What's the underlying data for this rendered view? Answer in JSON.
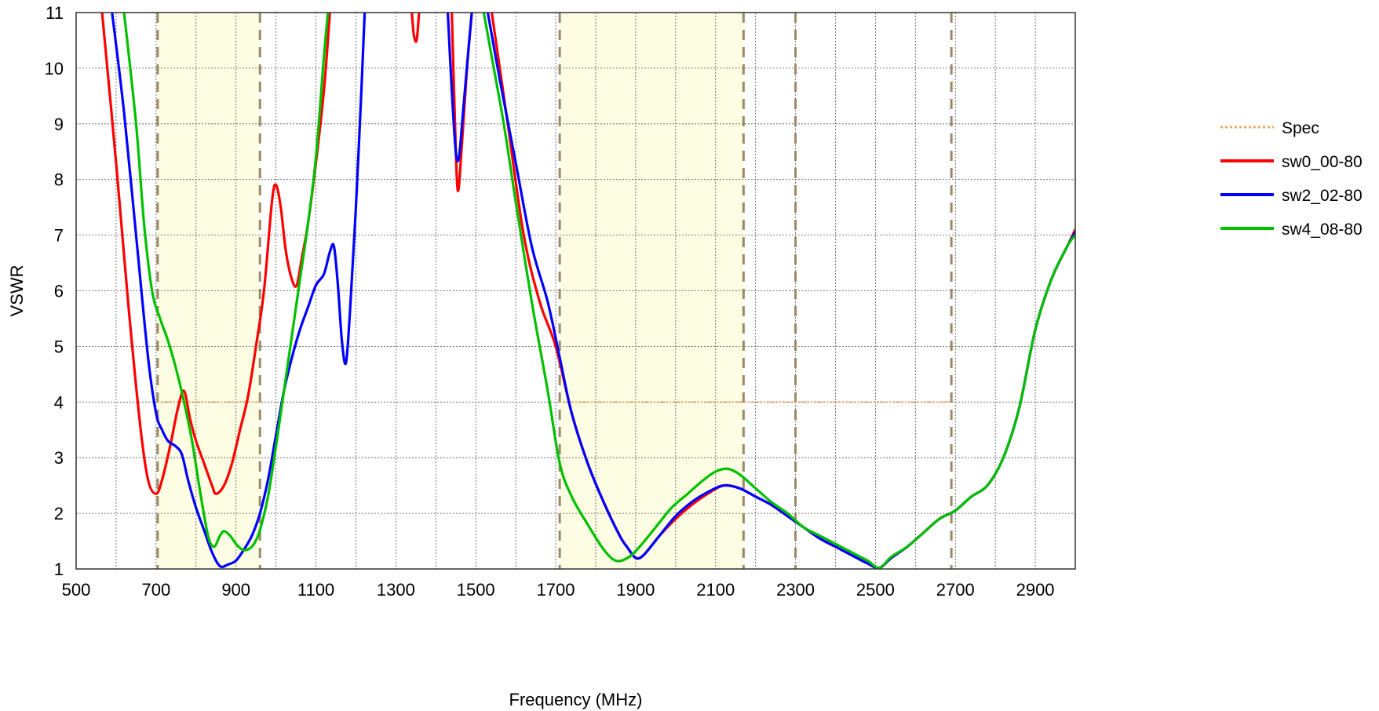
{
  "chart_data": {
    "type": "line",
    "title": "",
    "xlabel": "Frequency (MHz)",
    "ylabel": "VSWR",
    "xlim": [
      500,
      3000
    ],
    "ylim": [
      1,
      11
    ],
    "grid": true,
    "legend_position": "right",
    "x_ticks": [
      "500",
      "700",
      "900",
      "1100",
      "1300",
      "1500",
      "1700",
      "1900",
      "2100",
      "2300",
      "2500",
      "2700",
      "2900"
    ],
    "y_ticks": [
      "1",
      "2",
      "3",
      "4",
      "5",
      "6",
      "7",
      "8",
      "9",
      "10",
      "11"
    ],
    "shaded_bands": [
      [
        704,
        960
      ],
      [
        1710,
        2170
      ]
    ],
    "band_markers": [
      704,
      960,
      1710,
      2170,
      2300,
      2690
    ],
    "spec": {
      "name": "Spec",
      "color": "#f4a460",
      "value": 4,
      "ranges": [
        [
          704,
          960
        ],
        [
          1710,
          2690
        ]
      ]
    },
    "series": [
      {
        "name": "sw0_00-80",
        "color": "#ff0000",
        "points": [
          [
            565,
            11
          ],
          [
            600,
            8.3
          ],
          [
            630,
            5.8
          ],
          [
            660,
            3.6
          ],
          [
            680,
            2.6
          ],
          [
            700,
            2.35
          ],
          [
            715,
            2.6
          ],
          [
            735,
            3.2
          ],
          [
            755,
            3.9
          ],
          [
            770,
            4.2
          ],
          [
            785,
            3.7
          ],
          [
            800,
            3.3
          ],
          [
            820,
            2.9
          ],
          [
            840,
            2.5
          ],
          [
            850,
            2.35
          ],
          [
            870,
            2.5
          ],
          [
            890,
            2.9
          ],
          [
            910,
            3.5
          ],
          [
            930,
            4.1
          ],
          [
            950,
            5.0
          ],
          [
            970,
            6.0
          ],
          [
            990,
            7.6
          ],
          [
            1000,
            7.9
          ],
          [
            1012,
            7.5
          ],
          [
            1025,
            6.7
          ],
          [
            1040,
            6.2
          ],
          [
            1052,
            6.1
          ],
          [
            1065,
            6.6
          ],
          [
            1080,
            7.2
          ],
          [
            1100,
            8.3
          ],
          [
            1120,
            9.6
          ],
          [
            1135,
            11
          ]
        ],
        "segments": [
          [
            [
              1340,
              11
            ],
            [
              1345,
              10.6
            ],
            [
              1352,
              10.5
            ],
            [
              1358,
              11
            ]
          ],
          [
            [
              1440,
              11
            ],
            [
              1448,
              9.0
            ],
            [
              1455,
              7.8
            ],
            [
              1465,
              8.6
            ],
            [
              1478,
              10.0
            ],
            [
              1490,
              11
            ]
          ],
          [
            [
              1540,
              11
            ],
            [
              1580,
              9.0
            ],
            [
              1620,
              7.0
            ],
            [
              1660,
              5.8
            ],
            [
              1700,
              5.0
            ],
            [
              1740,
              3.8
            ],
            [
              1780,
              2.9
            ],
            [
              1820,
              2.2
            ],
            [
              1860,
              1.6
            ],
            [
              1880,
              1.38
            ],
            [
              1900,
              1.2
            ],
            [
              1920,
              1.25
            ],
            [
              1960,
              1.6
            ],
            [
              2000,
              1.9
            ],
            [
              2040,
              2.15
            ],
            [
              2080,
              2.35
            ],
            [
              2120,
              2.5
            ],
            [
              2160,
              2.45
            ],
            [
              2200,
              2.3
            ],
            [
              2240,
              2.15
            ],
            [
              2280,
              1.95
            ],
            [
              2320,
              1.75
            ],
            [
              2360,
              1.55
            ],
            [
              2400,
              1.4
            ],
            [
              2440,
              1.25
            ],
            [
              2480,
              1.1
            ],
            [
              2510,
              1.02
            ],
            [
              2540,
              1.2
            ],
            [
              2580,
              1.4
            ],
            [
              2620,
              1.65
            ],
            [
              2660,
              1.9
            ],
            [
              2700,
              2.05
            ],
            [
              2740,
              2.3
            ],
            [
              2780,
              2.5
            ],
            [
              2820,
              3.0
            ],
            [
              2860,
              3.9
            ],
            [
              2900,
              5.3
            ],
            [
              2940,
              6.2
            ],
            [
              2980,
              6.8
            ],
            [
              3000,
              7.1
            ]
          ]
        ]
      },
      {
        "name": "sw2_02-80",
        "color": "#0000ff",
        "points": [
          [
            590,
            11
          ],
          [
            620,
            9.2
          ],
          [
            650,
            7.0
          ],
          [
            680,
            4.8
          ],
          [
            700,
            3.8
          ],
          [
            715,
            3.5
          ],
          [
            730,
            3.3
          ],
          [
            750,
            3.2
          ],
          [
            765,
            3.05
          ],
          [
            780,
            2.6
          ],
          [
            800,
            2.1
          ],
          [
            820,
            1.7
          ],
          [
            840,
            1.3
          ],
          [
            860,
            1.05
          ],
          [
            880,
            1.08
          ],
          [
            900,
            1.15
          ],
          [
            920,
            1.35
          ],
          [
            940,
            1.6
          ],
          [
            960,
            2.0
          ],
          [
            980,
            2.6
          ],
          [
            1000,
            3.4
          ],
          [
            1020,
            4.2
          ],
          [
            1040,
            4.8
          ],
          [
            1060,
            5.3
          ],
          [
            1080,
            5.7
          ],
          [
            1100,
            6.1
          ],
          [
            1120,
            6.3
          ],
          [
            1135,
            6.7
          ],
          [
            1145,
            6.8
          ],
          [
            1155,
            6.1
          ],
          [
            1165,
            5.1
          ],
          [
            1175,
            4.7
          ],
          [
            1185,
            5.6
          ],
          [
            1200,
            7.5
          ],
          [
            1215,
            9.8
          ],
          [
            1222,
            11
          ]
        ],
        "segments": [
          [
            [
              1430,
              11
            ],
            [
              1440,
              9.6
            ],
            [
              1450,
              8.5
            ],
            [
              1458,
              8.4
            ],
            [
              1468,
              9.2
            ],
            [
              1480,
              10.2
            ],
            [
              1490,
              11
            ]
          ],
          [
            [
              1530,
              11
            ],
            [
              1560,
              9.8
            ],
            [
              1600,
              8.3
            ],
            [
              1640,
              6.8
            ],
            [
              1680,
              5.8
            ],
            [
              1710,
              4.8
            ],
            [
              1740,
              3.8
            ],
            [
              1780,
              2.9
            ],
            [
              1820,
              2.2
            ],
            [
              1860,
              1.6
            ],
            [
              1880,
              1.38
            ],
            [
              1900,
              1.2
            ],
            [
              1920,
              1.25
            ],
            [
              1960,
              1.6
            ],
            [
              2000,
              1.95
            ],
            [
              2040,
              2.2
            ],
            [
              2080,
              2.38
            ],
            [
              2120,
              2.5
            ],
            [
              2160,
              2.45
            ],
            [
              2200,
              2.3
            ],
            [
              2240,
              2.15
            ],
            [
              2280,
              1.95
            ],
            [
              2320,
              1.75
            ],
            [
              2360,
              1.55
            ],
            [
              2400,
              1.4
            ],
            [
              2440,
              1.25
            ],
            [
              2480,
              1.1
            ],
            [
              2510,
              1.02
            ],
            [
              2540,
              1.2
            ],
            [
              2580,
              1.4
            ],
            [
              2620,
              1.65
            ],
            [
              2660,
              1.9
            ],
            [
              2700,
              2.05
            ],
            [
              2740,
              2.3
            ],
            [
              2780,
              2.5
            ],
            [
              2820,
              3.0
            ],
            [
              2860,
              3.9
            ],
            [
              2900,
              5.3
            ],
            [
              2940,
              6.2
            ],
            [
              2980,
              6.8
            ],
            [
              3000,
              7.05
            ]
          ]
        ]
      },
      {
        "name": "sw4_08-80",
        "color": "#00c000",
        "points": [
          [
            620,
            11
          ],
          [
            650,
            9.0
          ],
          [
            670,
            7.2
          ],
          [
            690,
            6.0
          ],
          [
            710,
            5.5
          ],
          [
            730,
            5.1
          ],
          [
            750,
            4.6
          ],
          [
            770,
            4.0
          ],
          [
            790,
            3.3
          ],
          [
            810,
            2.4
          ],
          [
            830,
            1.6
          ],
          [
            845,
            1.4
          ],
          [
            860,
            1.6
          ],
          [
            870,
            1.68
          ],
          [
            885,
            1.6
          ],
          [
            900,
            1.45
          ],
          [
            915,
            1.35
          ],
          [
            930,
            1.35
          ],
          [
            945,
            1.45
          ],
          [
            960,
            1.7
          ],
          [
            980,
            2.3
          ],
          [
            1000,
            3.2
          ],
          [
            1020,
            4.2
          ],
          [
            1040,
            5.2
          ],
          [
            1060,
            6.2
          ],
          [
            1080,
            7.2
          ],
          [
            1100,
            8.4
          ],
          [
            1120,
            10.2
          ],
          [
            1130,
            11
          ]
        ],
        "segments": [
          [
            [
              1520,
              11
            ],
            [
              1540,
              10.2
            ],
            [
              1570,
              9.0
            ],
            [
              1600,
              7.6
            ],
            [
              1640,
              5.8
            ],
            [
              1680,
              4.2
            ],
            [
              1710,
              2.9
            ],
            [
              1740,
              2.3
            ],
            [
              1780,
              1.8
            ],
            [
              1820,
              1.35
            ],
            [
              1850,
              1.15
            ],
            [
              1880,
              1.2
            ],
            [
              1910,
              1.4
            ],
            [
              1950,
              1.75
            ],
            [
              1990,
              2.1
            ],
            [
              2030,
              2.35
            ],
            [
              2070,
              2.6
            ],
            [
              2100,
              2.75
            ],
            [
              2130,
              2.8
            ],
            [
              2160,
              2.7
            ],
            [
              2200,
              2.45
            ],
            [
              2240,
              2.2
            ],
            [
              2280,
              2.0
            ],
            [
              2320,
              1.75
            ],
            [
              2360,
              1.6
            ],
            [
              2400,
              1.45
            ],
            [
              2440,
              1.3
            ],
            [
              2480,
              1.15
            ],
            [
              2510,
              1.02
            ],
            [
              2540,
              1.22
            ],
            [
              2580,
              1.4
            ],
            [
              2620,
              1.65
            ],
            [
              2660,
              1.9
            ],
            [
              2700,
              2.05
            ],
            [
              2740,
              2.3
            ],
            [
              2780,
              2.5
            ],
            [
              2820,
              3.0
            ],
            [
              2860,
              3.9
            ],
            [
              2900,
              5.3
            ],
            [
              2940,
              6.2
            ],
            [
              2980,
              6.8
            ],
            [
              3000,
              7.0
            ]
          ]
        ]
      }
    ],
    "legend": [
      {
        "name": "Spec",
        "color": "#f4a460",
        "style": "dotted"
      },
      {
        "name": "sw0_00-80",
        "color": "#ff0000",
        "style": "solid"
      },
      {
        "name": "sw2_02-80",
        "color": "#0000ff",
        "style": "solid"
      },
      {
        "name": "sw4_08-80",
        "color": "#00c000",
        "style": "solid"
      }
    ]
  }
}
